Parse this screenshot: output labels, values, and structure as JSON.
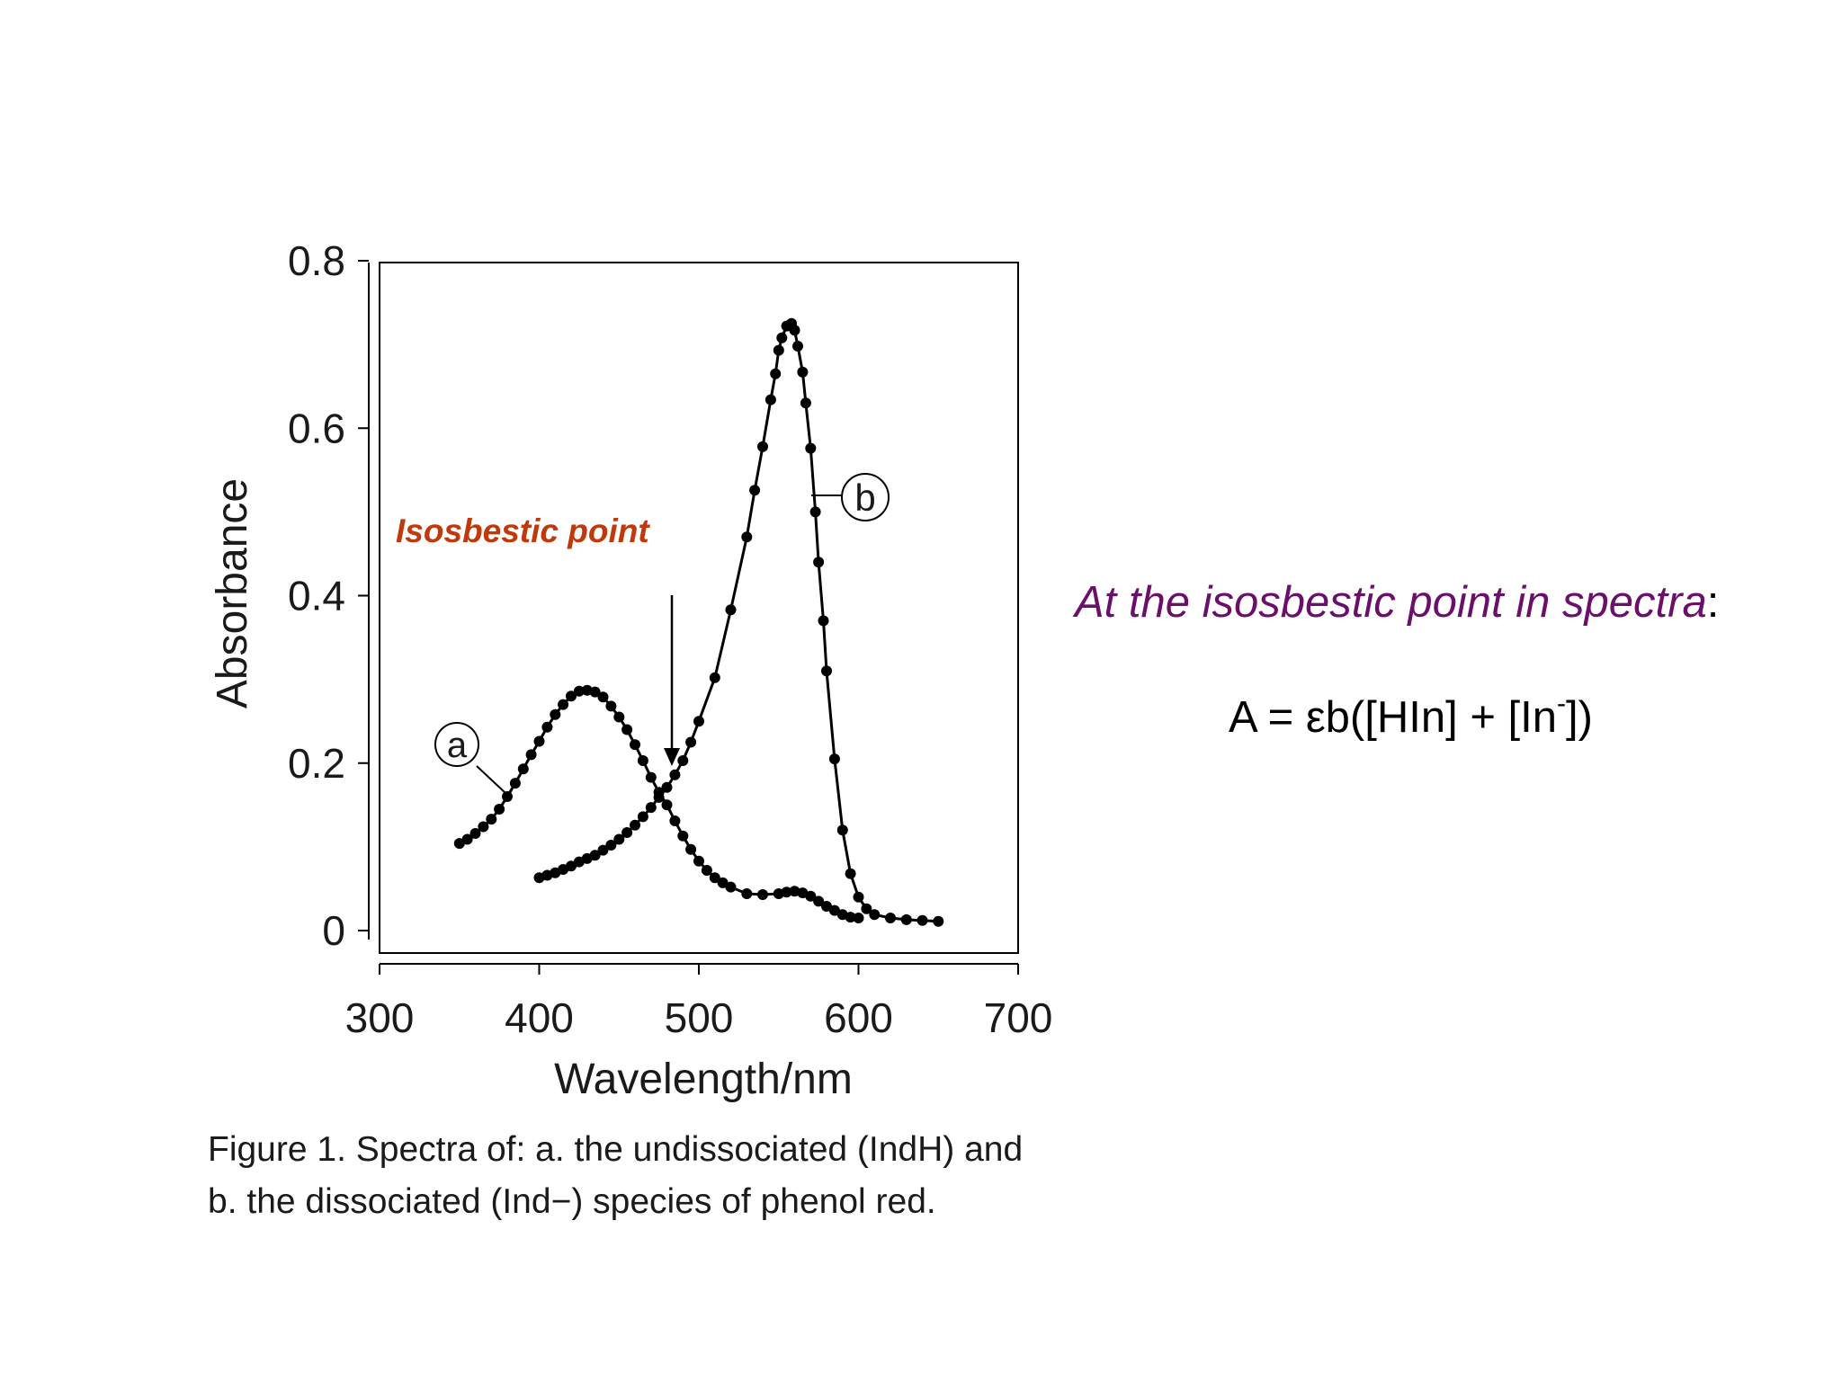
{
  "chart_data": {
    "type": "scatter",
    "xlabel": "Wavelength/nm",
    "ylabel": "Absorbance",
    "xlim": [
      300,
      700
    ],
    "ylim": [
      0,
      0.8
    ],
    "xticks": [
      300,
      400,
      500,
      600,
      700
    ],
    "yticks": [
      0,
      0.2,
      0.4,
      0.6,
      0.8
    ],
    "xtick_labels": [
      "300",
      "400",
      "500",
      "600",
      "700"
    ],
    "ytick_labels": [
      "0",
      "0.2",
      "0.4",
      "0.6",
      "0.8"
    ],
    "grid": false,
    "series": [
      {
        "name": "a",
        "x": [
          350,
          355,
          360,
          365,
          370,
          375,
          380,
          385,
          390,
          395,
          400,
          405,
          410,
          415,
          420,
          425,
          430,
          435,
          440,
          445,
          450,
          455,
          460,
          465,
          470,
          475,
          480,
          485,
          490,
          495,
          500,
          505,
          510,
          515,
          520,
          530,
          540,
          550,
          555,
          560,
          565,
          570,
          575,
          580,
          585,
          590,
          595,
          600
        ],
        "y": [
          0.104,
          0.109,
          0.116,
          0.124,
          0.133,
          0.145,
          0.16,
          0.176,
          0.193,
          0.21,
          0.226,
          0.243,
          0.258,
          0.27,
          0.28,
          0.286,
          0.287,
          0.285,
          0.279,
          0.268,
          0.255,
          0.24,
          0.222,
          0.203,
          0.183,
          0.165,
          0.15,
          0.131,
          0.113,
          0.097,
          0.083,
          0.072,
          0.063,
          0.057,
          0.052,
          0.044,
          0.043,
          0.044,
          0.046,
          0.047,
          0.045,
          0.041,
          0.035,
          0.029,
          0.024,
          0.019,
          0.016,
          0.015
        ]
      },
      {
        "name": "b",
        "x": [
          400,
          405,
          410,
          415,
          420,
          425,
          430,
          435,
          440,
          445,
          450,
          455,
          460,
          465,
          470,
          475,
          480,
          485,
          490,
          495,
          500,
          510,
          520,
          530,
          535,
          540,
          545,
          548,
          550,
          552,
          555,
          558,
          560,
          562,
          565,
          567,
          570,
          573,
          575,
          578,
          580,
          585,
          590,
          595,
          600,
          605,
          610,
          620,
          630,
          640,
          650
        ],
        "y": [
          0.063,
          0.066,
          0.069,
          0.073,
          0.077,
          0.082,
          0.086,
          0.09,
          0.096,
          0.102,
          0.109,
          0.117,
          0.126,
          0.136,
          0.147,
          0.159,
          0.171,
          0.186,
          0.203,
          0.225,
          0.25,
          0.302,
          0.383,
          0.47,
          0.526,
          0.578,
          0.634,
          0.665,
          0.693,
          0.708,
          0.722,
          0.725,
          0.717,
          0.698,
          0.667,
          0.63,
          0.576,
          0.5,
          0.44,
          0.37,
          0.31,
          0.205,
          0.12,
          0.068,
          0.04,
          0.026,
          0.019,
          0.015,
          0.013,
          0.012,
          0.011
        ]
      }
    ],
    "annotations": [
      "Isosbestic point"
    ]
  },
  "labels": {
    "isosbestic": "Isosbestic point",
    "caption_line1": "Figure 1. Spectra of: a. the undissociated (IndH) and",
    "caption_line2": "b. the dissociated (Ind−) species of phenol red.",
    "heading_italic": "At the isosbestic point in spectra",
    "heading_colon": ":",
    "equation_main": "A = εb([HIn] + [In",
    "equation_sup": "-",
    "equation_end": "])"
  },
  "colors": {
    "curve": "#000000",
    "annotation": "#c0390b",
    "heading": "#6a0f6a"
  }
}
